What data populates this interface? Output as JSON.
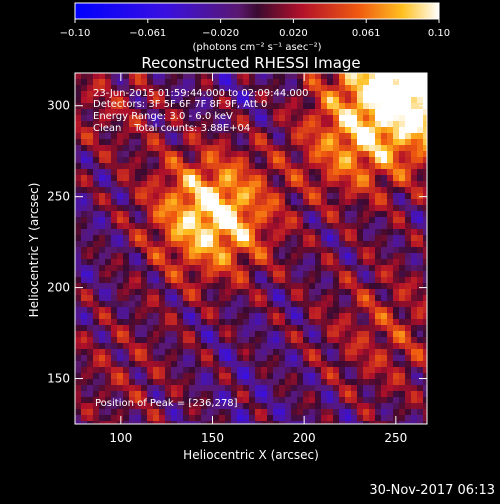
{
  "chart_data": {
    "type": "heatmap",
    "title": "Reconstructed RHESSI Image",
    "xlabel": "Heliocentric X (arcsec)",
    "ylabel": "Heliocentric Y (arcsec)",
    "xlim": [
      75,
      267
    ],
    "ylim": [
      125,
      318
    ],
    "x_ticks": [
      100,
      150,
      200,
      250
    ],
    "y_ticks": [
      150,
      200,
      250,
      300
    ],
    "colorbar": {
      "range": [
        -0.1,
        0.1
      ],
      "ticks": [
        "−0.10",
        "−0.061",
        "−0.020",
        "0.020",
        "0.061",
        "0.10"
      ],
      "unit_label": "(photons cm⁻² s⁻¹ asec⁻²)"
    },
    "annotations": [
      "23-Jun-2015 01:59:44.000 to 02:09:44.000",
      "Detectors: 3F 5F 6F 7F 8F 9F, Att 0",
      "Energy Range: 3.0 - 6.0 keV",
      "Clean    Total counts: 3.88E+04"
    ],
    "peak_label": "Position of Peak = [236,278]",
    "peak": [
      236,
      278
    ],
    "sources": [
      {
        "x": 150,
        "y": 240,
        "amplitude": 0.11,
        "sigma": 24
      },
      {
        "x": 268,
        "y": 322,
        "amplitude": 0.16,
        "sigma": 32
      },
      {
        "x": 225,
        "y": 278,
        "amplitude": 0.06,
        "sigma": 22
      },
      {
        "x": 245,
        "y": 175,
        "amplitude": 0.04,
        "sigma": 30
      },
      {
        "x": 90,
        "y": 300,
        "amplitude": 0.03,
        "sigma": 25
      },
      {
        "x": 100,
        "y": 155,
        "amplitude": 0.025,
        "sigma": 30
      }
    ]
  },
  "footer_date": "30-Nov-2017 06:13"
}
